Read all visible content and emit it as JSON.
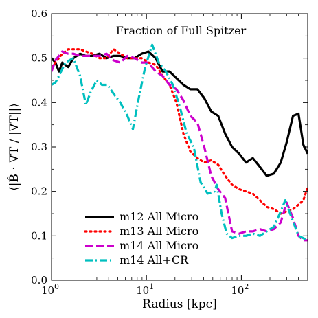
{
  "chart_data": {
    "type": "line",
    "title": "Fraction of Full Spitzer",
    "xlabel": "Radius [kpc]",
    "ylabel": "⟨|B̂ · ∇T / |∇T||⟩",
    "xscale": "log",
    "xlim": [
      1,
      500
    ],
    "ylim": [
      0.0,
      0.6
    ],
    "xticks": [
      {
        "v": 1,
        "base": "10",
        "exp": "0"
      },
      {
        "v": 10,
        "base": "10",
        "exp": "1"
      },
      {
        "v": 100,
        "base": "10",
        "exp": "2"
      }
    ],
    "yticks": [
      0.0,
      0.1,
      0.2,
      0.3,
      0.4,
      0.5,
      0.6
    ],
    "ytick_labels": [
      "0.0",
      "0.1",
      "0.2",
      "0.3",
      "0.4",
      "0.5",
      "0.6"
    ],
    "grid": false,
    "legend_position": "lower-left",
    "series": [
      {
        "name": "m12 All Micro",
        "color": "#000000",
        "dash": "solid",
        "x": [
          1,
          1.1,
          1.2,
          1.3,
          1.5,
          1.7,
          2,
          2.3,
          2.7,
          3.2,
          3.8,
          4.5,
          5.3,
          6.3,
          7.5,
          8.9,
          10.5,
          12.5,
          14.8,
          17.5,
          20.7,
          24.5,
          29,
          34.4,
          40.7,
          48.2,
          57,
          67.5,
          79.9,
          94.6,
          112,
          132,
          157,
          185,
          220,
          260,
          300,
          350,
          400,
          450,
          500
        ],
        "y": [
          0.5,
          0.49,
          0.47,
          0.49,
          0.48,
          0.5,
          0.51,
          0.505,
          0.505,
          0.51,
          0.5,
          0.505,
          0.505,
          0.5,
          0.5,
          0.51,
          0.515,
          0.5,
          0.47,
          0.47,
          0.455,
          0.44,
          0.43,
          0.43,
          0.41,
          0.38,
          0.37,
          0.33,
          0.3,
          0.285,
          0.265,
          0.275,
          0.255,
          0.235,
          0.24,
          0.265,
          0.31,
          0.37,
          0.375,
          0.305,
          0.285
        ]
      },
      {
        "name": "m13 All Micro",
        "color": "#ff0000",
        "dash": "dotted",
        "x": [
          1,
          1.1,
          1.3,
          1.5,
          1.7,
          2,
          2.3,
          2.7,
          3.2,
          3.8,
          4.5,
          5.3,
          6.3,
          7.5,
          8.9,
          10.5,
          12.5,
          14.8,
          17.5,
          20.7,
          24.5,
          29,
          34.4,
          40.7,
          48.2,
          57,
          67.5,
          79.9,
          94.6,
          112,
          132,
          157,
          185,
          220,
          260,
          300,
          350,
          400,
          450,
          500
        ],
        "y": [
          0.48,
          0.49,
          0.51,
          0.52,
          0.52,
          0.52,
          0.515,
          0.51,
          0.5,
          0.5,
          0.52,
          0.51,
          0.5,
          0.5,
          0.5,
          0.49,
          0.485,
          0.46,
          0.44,
          0.4,
          0.33,
          0.29,
          0.275,
          0.265,
          0.27,
          0.26,
          0.235,
          0.215,
          0.205,
          0.2,
          0.195,
          0.18,
          0.165,
          0.16,
          0.15,
          0.155,
          0.16,
          0.17,
          0.18,
          0.21
        ]
      },
      {
        "name": "m14 All Micro",
        "color": "#cc00cc",
        "dash": "dashed",
        "x": [
          1,
          1.1,
          1.3,
          1.5,
          1.7,
          2,
          2.3,
          2.7,
          3.2,
          3.8,
          4.5,
          5.3,
          6.3,
          7.5,
          8.9,
          10.5,
          12.5,
          14.8,
          17.5,
          20.7,
          24.5,
          29,
          34.4,
          40.7,
          48.2,
          57,
          67.5,
          79.9,
          94.6,
          112,
          132,
          157,
          185,
          220,
          260,
          300,
          350,
          400,
          450,
          500
        ],
        "y": [
          0.47,
          0.495,
          0.515,
          0.51,
          0.51,
          0.505,
          0.505,
          0.505,
          0.505,
          0.51,
          0.495,
          0.49,
          0.505,
          0.5,
          0.49,
          0.49,
          0.47,
          0.46,
          0.44,
          0.43,
          0.405,
          0.37,
          0.355,
          0.3,
          0.235,
          0.205,
          0.185,
          0.11,
          0.105,
          0.11,
          0.11,
          0.115,
          0.11,
          0.115,
          0.13,
          0.175,
          0.14,
          0.1,
          0.09,
          0.09
        ]
      },
      {
        "name": "m14 All+CR",
        "color": "#00bfbf",
        "dash": "dashdot",
        "x": [
          1,
          1.1,
          1.2,
          1.4,
          1.7,
          2,
          2.3,
          2.6,
          3,
          3.4,
          3.9,
          4.5,
          5.3,
          6.3,
          7.2,
          8.3,
          9.7,
          11.5,
          13.5,
          16,
          19,
          22.5,
          26.6,
          31.5,
          37.3,
          44.2,
          52.3,
          55,
          62,
          70,
          79.9,
          94.6,
          112,
          132,
          157,
          185,
          220,
          260,
          290,
          320,
          400,
          500
        ],
        "y": [
          0.44,
          0.445,
          0.46,
          0.49,
          0.5,
          0.46,
          0.395,
          0.425,
          0.45,
          0.44,
          0.44,
          0.42,
          0.4,
          0.37,
          0.34,
          0.41,
          0.48,
          0.53,
          0.49,
          0.47,
          0.44,
          0.39,
          0.33,
          0.3,
          0.22,
          0.195,
          0.2,
          0.215,
          0.15,
          0.105,
          0.095,
          0.1,
          0.1,
          0.105,
          0.1,
          0.11,
          0.12,
          0.155,
          0.18,
          0.155,
          0.1,
          0.09
        ]
      }
    ]
  }
}
